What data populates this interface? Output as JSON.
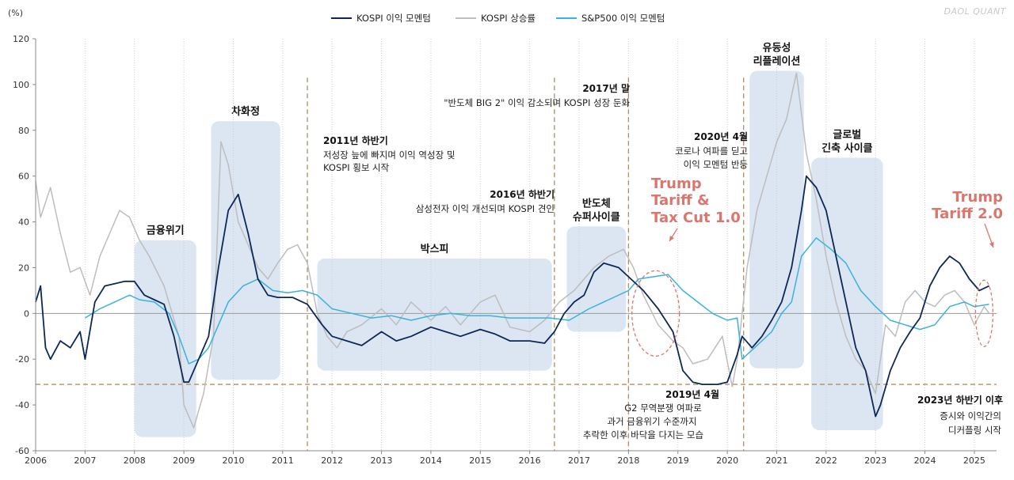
{
  "chart_data": {
    "type": "line",
    "y_unit_label": "(%)",
    "brand": "DAOL QUANT",
    "ylim": [
      -60,
      120
    ],
    "yticks": [
      -60,
      -40,
      -20,
      0,
      20,
      40,
      60,
      80,
      100,
      120
    ],
    "xlim": [
      2006,
      2025.45
    ],
    "xticks": [
      2006,
      2007,
      2008,
      2009,
      2010,
      2011,
      2012,
      2013,
      2014,
      2015,
      2016,
      2017,
      2018,
      2019,
      2020,
      2021,
      2022,
      2023,
      2024,
      2025
    ],
    "reference_line_y": -31,
    "colors": {
      "kospi_momentum": "#0d2857",
      "kospi_growth": "#bdbdbd",
      "sp500_momentum": "#3bb2db",
      "region": "#d6e1f0",
      "dashed": "#b08d63",
      "trump": "#d9776e",
      "zero": "#9a9a9a"
    },
    "series": [
      {
        "name": "KOSPI 이익 모멘텀",
        "key": "kospi_momentum",
        "x": [
          2006.0,
          2006.1,
          2006.2,
          2006.3,
          2006.5,
          2006.7,
          2006.9,
          2007.0,
          2007.2,
          2007.4,
          2007.6,
          2007.8,
          2008.0,
          2008.2,
          2008.4,
          2008.6,
          2008.8,
          2009.0,
          2009.1,
          2009.3,
          2009.5,
          2009.7,
          2009.9,
          2010.1,
          2010.3,
          2010.5,
          2010.7,
          2010.9,
          2011.2,
          2011.5,
          2011.8,
          2012.0,
          2012.3,
          2012.6,
          2013.0,
          2013.3,
          2013.6,
          2014.0,
          2014.3,
          2014.6,
          2015.0,
          2015.3,
          2015.6,
          2016.0,
          2016.3,
          2016.5,
          2016.7,
          2016.9,
          2017.1,
          2017.3,
          2017.5,
          2017.8,
          2018.0,
          2018.3,
          2018.6,
          2018.9,
          2019.1,
          2019.3,
          2019.5,
          2019.8,
          2020.0,
          2020.2,
          2020.3,
          2020.5,
          2020.7,
          2020.9,
          2021.1,
          2021.3,
          2021.5,
          2021.6,
          2021.8,
          2022.0,
          2022.2,
          2022.4,
          2022.6,
          2022.8,
          2023.0,
          2023.1,
          2023.3,
          2023.5,
          2023.7,
          2023.9,
          2024.1,
          2024.3,
          2024.5,
          2024.7,
          2024.9,
          2025.1,
          2025.3
        ],
        "y": [
          5,
          12,
          -15,
          -20,
          -12,
          -15,
          -8,
          -20,
          5,
          12,
          13,
          14,
          14,
          8,
          6,
          4,
          -10,
          -30,
          -30,
          -20,
          -10,
          20,
          45,
          52,
          35,
          15,
          8,
          7,
          7,
          4,
          -5,
          -10,
          -12,
          -14,
          -8,
          -12,
          -10,
          -6,
          -8,
          -10,
          -7,
          -9,
          -12,
          -12,
          -13,
          -8,
          0,
          5,
          8,
          18,
          22,
          20,
          16,
          10,
          2,
          -8,
          -25,
          -30,
          -31,
          -31,
          -30,
          -18,
          -10,
          -15,
          -10,
          -3,
          5,
          20,
          45,
          60,
          55,
          45,
          25,
          5,
          -15,
          -25,
          -45,
          -40,
          -25,
          -15,
          -8,
          -2,
          12,
          20,
          25,
          22,
          15,
          10,
          12
        ]
      },
      {
        "name": "KOSPI 상승률",
        "key": "kospi_growth",
        "x": [
          2006.0,
          2006.1,
          2006.3,
          2006.5,
          2006.7,
          2006.9,
          2007.1,
          2007.3,
          2007.5,
          2007.7,
          2007.9,
          2008.1,
          2008.3,
          2008.6,
          2008.9,
          2009.0,
          2009.2,
          2009.4,
          2009.6,
          2009.75,
          2009.9,
          2010.1,
          2010.3,
          2010.5,
          2010.7,
          2010.9,
          2011.1,
          2011.3,
          2011.5,
          2011.7,
          2011.9,
          2012.1,
          2012.3,
          2012.6,
          2013.0,
          2013.3,
          2013.6,
          2014.0,
          2014.3,
          2014.6,
          2015.0,
          2015.3,
          2015.6,
          2016.0,
          2016.3,
          2016.6,
          2016.9,
          2017.1,
          2017.3,
          2017.6,
          2017.9,
          2018.1,
          2018.3,
          2018.6,
          2018.9,
          2019.1,
          2019.3,
          2019.6,
          2019.9,
          2020.1,
          2020.2,
          2020.4,
          2020.6,
          2020.8,
          2021.0,
          2021.2,
          2021.4,
          2021.6,
          2021.8,
          2022.0,
          2022.2,
          2022.4,
          2022.6,
          2022.8,
          2023.0,
          2023.2,
          2023.4,
          2023.6,
          2023.8,
          2024.0,
          2024.2,
          2024.4,
          2024.6,
          2024.8,
          2025.0,
          2025.2,
          2025.3
        ],
        "y": [
          58,
          42,
          55,
          35,
          18,
          20,
          8,
          25,
          35,
          45,
          42,
          32,
          25,
          12,
          -10,
          -40,
          -50,
          -35,
          -10,
          75,
          65,
          40,
          30,
          20,
          15,
          22,
          28,
          30,
          22,
          0,
          -10,
          -15,
          -8,
          -5,
          2,
          -5,
          5,
          -3,
          3,
          -5,
          5,
          8,
          -6,
          -8,
          -3,
          5,
          10,
          15,
          20,
          25,
          28,
          20,
          8,
          -5,
          -12,
          -15,
          -22,
          -20,
          -10,
          -32,
          -20,
          20,
          45,
          60,
          75,
          85,
          105,
          70,
          50,
          25,
          5,
          -10,
          -20,
          -25,
          -35,
          -5,
          -10,
          5,
          10,
          5,
          3,
          8,
          10,
          5,
          -5,
          3,
          0
        ]
      },
      {
        "name": "S&P500 이익 모멘텀",
        "key": "sp500_momentum",
        "x": [
          2007.0,
          2007.3,
          2007.6,
          2007.9,
          2008.1,
          2008.4,
          2008.7,
          2008.9,
          2009.1,
          2009.3,
          2009.5,
          2009.7,
          2009.9,
          2010.2,
          2010.5,
          2010.8,
          2011.1,
          2011.4,
          2011.7,
          2012.0,
          2012.4,
          2012.8,
          2013.2,
          2013.6,
          2014.0,
          2014.4,
          2014.8,
          2015.2,
          2015.6,
          2016.0,
          2016.4,
          2016.8,
          2017.2,
          2017.6,
          2018.0,
          2018.2,
          2018.5,
          2018.8,
          2019.1,
          2019.4,
          2019.7,
          2020.0,
          2020.2,
          2020.3,
          2020.6,
          2020.9,
          2021.1,
          2021.3,
          2021.5,
          2021.8,
          2022.1,
          2022.4,
          2022.7,
          2023.0,
          2023.3,
          2023.6,
          2023.9,
          2024.2,
          2024.5,
          2024.8,
          2025.0,
          2025.3
        ],
        "y": [
          -2,
          2,
          5,
          8,
          6,
          5,
          0,
          -10,
          -22,
          -20,
          -15,
          -5,
          5,
          12,
          15,
          10,
          9,
          10,
          8,
          2,
          0,
          -2,
          -1,
          -3,
          -1,
          0,
          -1,
          -1,
          -2,
          -2,
          -2,
          -3,
          2,
          6,
          10,
          15,
          16,
          17,
          10,
          5,
          0,
          -3,
          -2,
          -20,
          -14,
          -8,
          0,
          5,
          25,
          33,
          28,
          22,
          10,
          3,
          -3,
          -5,
          -7,
          -5,
          3,
          5,
          3,
          4
        ]
      }
    ]
  },
  "legend": [
    {
      "label": "KOSPI 이익 모멘텀",
      "key": "kospi_momentum"
    },
    {
      "label": "KOSPI 상승률",
      "key": "kospi_growth"
    },
    {
      "label": "S&P500 이익 모멘텀",
      "key": "sp500_momentum"
    }
  ],
  "regions": [
    {
      "id": "gfc",
      "label": [
        "금융위기"
      ],
      "x0": 2008.0,
      "x1": 2009.25,
      "y0": 32,
      "y1": -54
    },
    {
      "id": "chahwajung",
      "label": [
        "차화정"
      ],
      "x0": 2009.55,
      "x1": 2010.95,
      "y0": 84,
      "y1": -29
    },
    {
      "id": "boxpi",
      "label": [
        "박스피"
      ],
      "x0": 2011.7,
      "x1": 2016.45,
      "y0": 24,
      "y1": -25
    },
    {
      "id": "semicycle",
      "label": [
        "반도체",
        "슈퍼사이클"
      ],
      "x0": 2016.75,
      "x1": 2017.95,
      "y0": 38,
      "y1": -8
    },
    {
      "id": "liquidity",
      "label": [
        "유동성",
        "리플레이션"
      ],
      "x0": 2020.45,
      "x1": 2021.55,
      "y0": 106,
      "y1": -24
    },
    {
      "id": "tightening",
      "label": [
        "글로벌",
        "긴축 사이클"
      ],
      "x0": 2021.7,
      "x1": 2023.15,
      "y0": 68,
      "y1": -51
    }
  ],
  "dashed_lines": [
    2011.5,
    2016.5,
    2018.0,
    2020.33
  ],
  "annotations": [
    {
      "id": "ann-2011",
      "title": "2011년 하반기",
      "lines": [
        "저성장 늪에 빠지며 이익 역성장 및",
        "KOSPI 횡보 시작"
      ]
    },
    {
      "id": "ann-2016",
      "title": "2016년 하반기",
      "lines": [
        "삼성전자 이익 개선되며 KOSPI 견인"
      ]
    },
    {
      "id": "ann-2017",
      "title": "2017년 말",
      "lines": [
        "\"반도체 BIG 2\" 이익 감소되며 KOSPI 성장 둔화"
      ]
    },
    {
      "id": "ann-2020",
      "title": "2020년 4월",
      "lines": [
        "코로나 여파를 딛고",
        "이익 모멘텀 반등"
      ]
    },
    {
      "id": "ann-2019",
      "title": "2019년 4월",
      "lines": [
        "G2 무역분쟁 여파로",
        "과거 금융위기 수준까지",
        "추락한 이후 바닥을 다지는 모습"
      ]
    },
    {
      "id": "ann-2023",
      "title": "2023년 하반기 이후",
      "lines": [
        "증시와 이익간의",
        "디커플링 시작"
      ]
    }
  ],
  "trump": [
    {
      "id": "trump-1",
      "lines": [
        "Trump",
        "Tariff &",
        "Tax Cut 1.0"
      ]
    },
    {
      "id": "trump-2",
      "lines": [
        "Trump",
        "Tariff 2.0"
      ]
    }
  ]
}
